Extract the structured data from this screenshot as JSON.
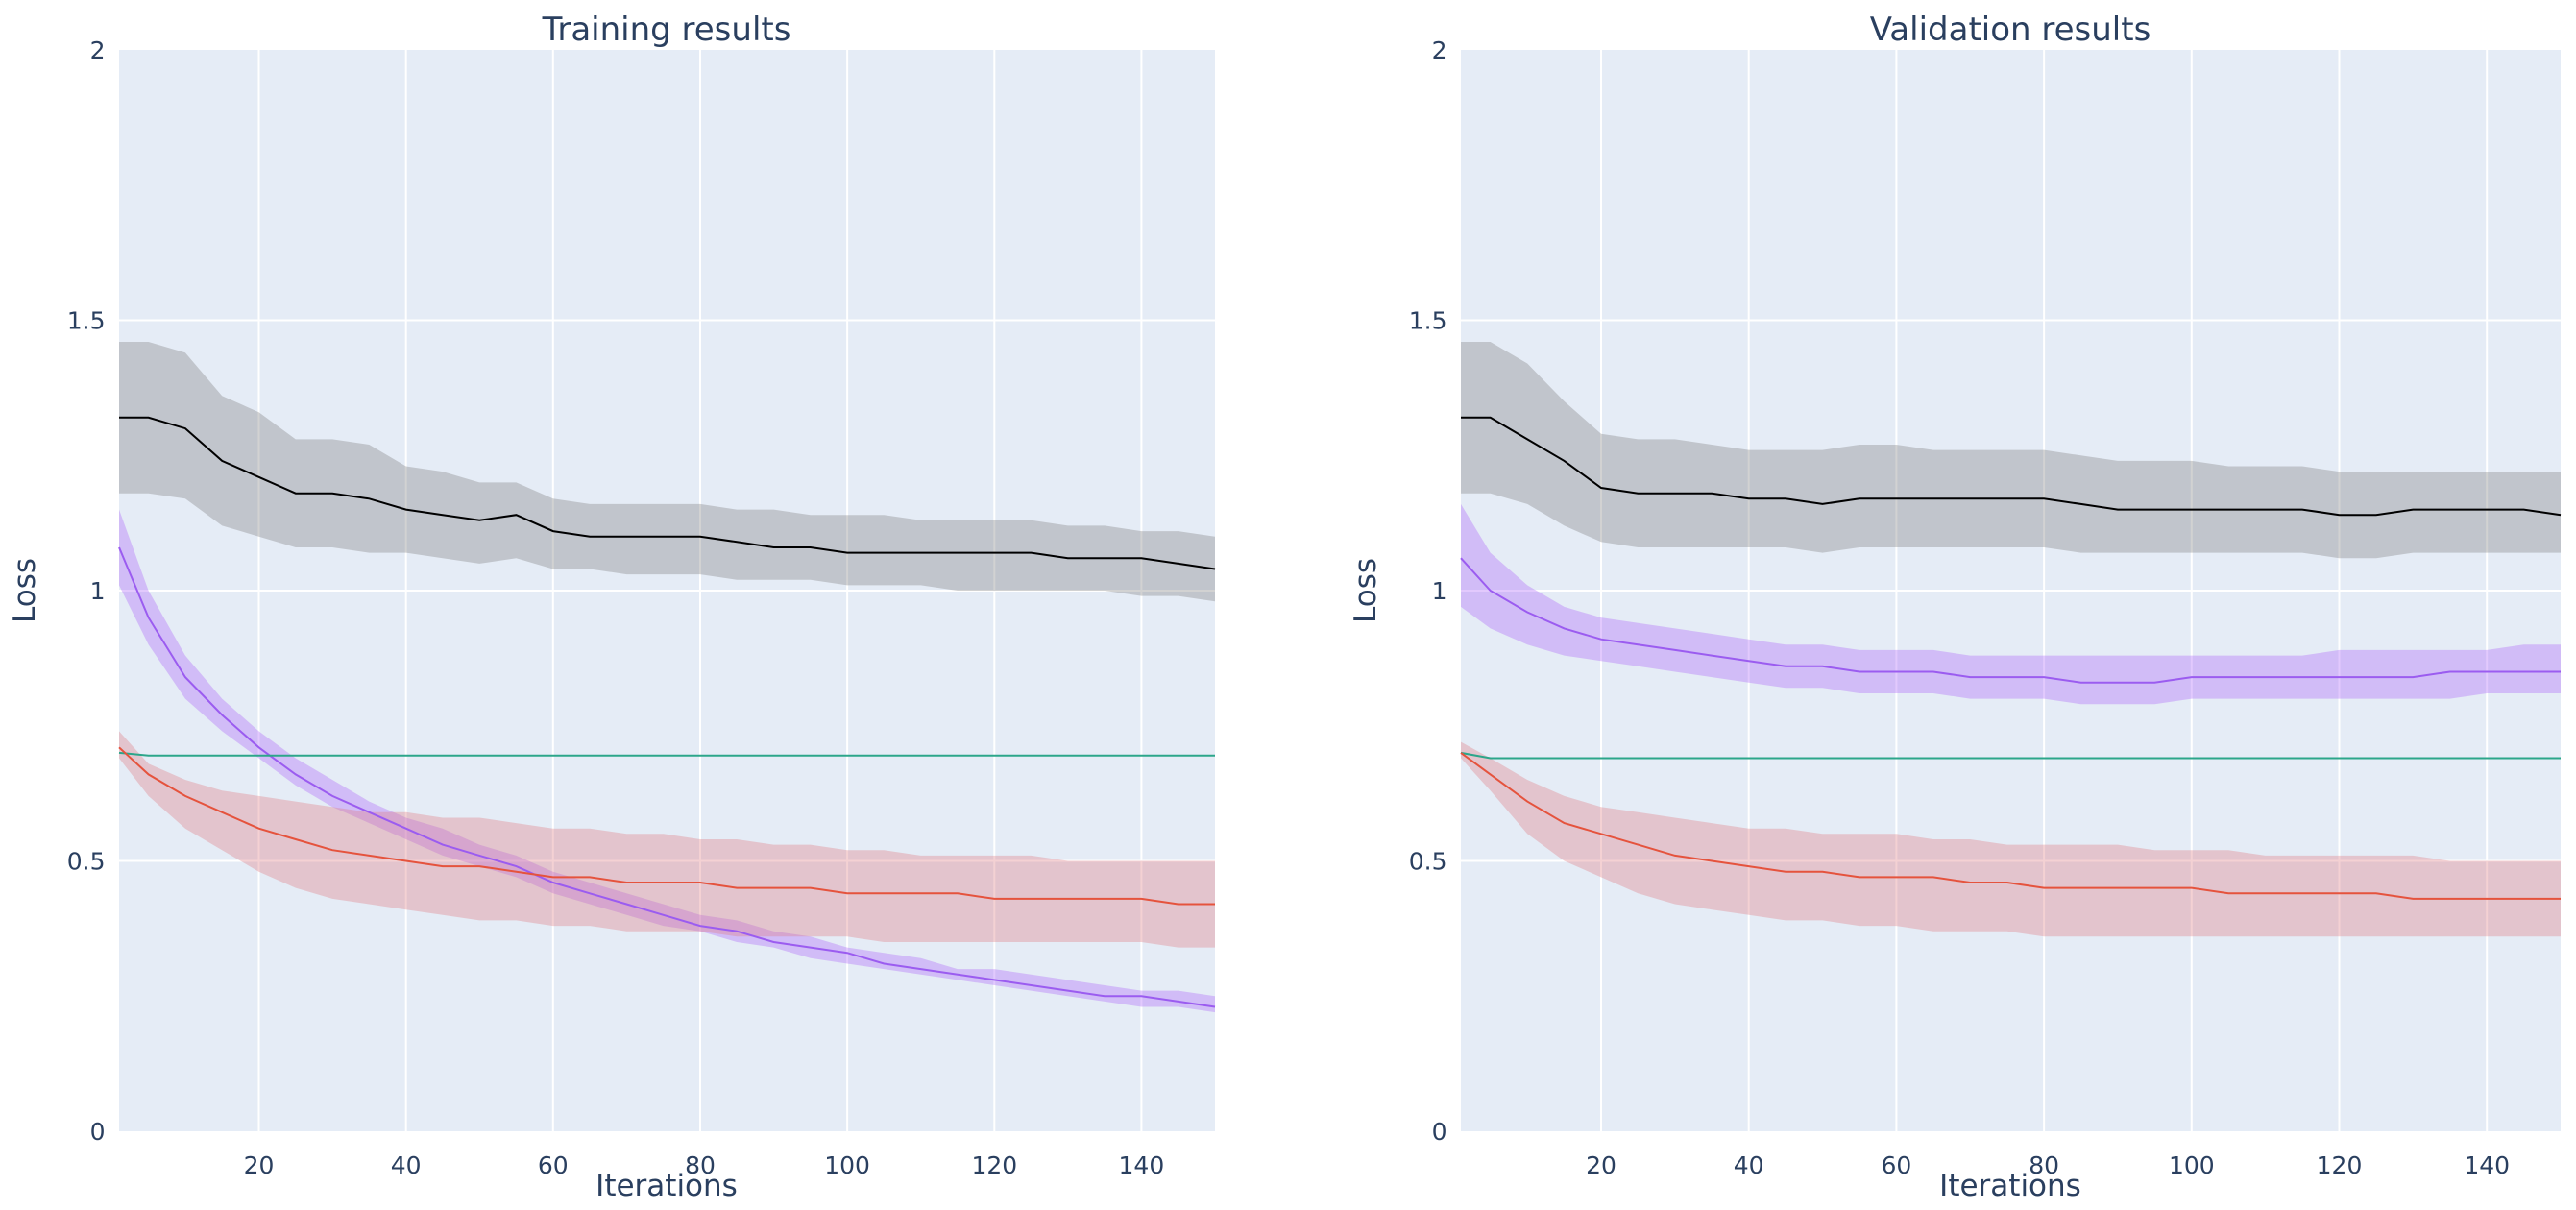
{
  "chart_data": [
    {
      "type": "line",
      "title": "Training results",
      "xlabel": "Iterations",
      "ylabel": "Loss",
      "xlim": [
        1,
        150
      ],
      "ylim": [
        0,
        2
      ],
      "x_ticks": [
        20,
        40,
        60,
        80,
        100,
        120,
        140
      ],
      "y_ticks": [
        0,
        0.5,
        1,
        1.5,
        2
      ],
      "y_tick_labels": [
        "0",
        "0.5",
        "1",
        "1.5",
        "2"
      ],
      "grid": true,
      "legend": "none",
      "x": [
        1,
        5,
        10,
        15,
        20,
        25,
        30,
        35,
        40,
        45,
        50,
        55,
        60,
        65,
        70,
        75,
        80,
        85,
        90,
        95,
        100,
        105,
        110,
        115,
        120,
        125,
        130,
        135,
        140,
        145,
        150
      ],
      "series": [
        {
          "color": "#000000",
          "band_color": "#7f7f7f",
          "values": [
            1.32,
            1.32,
            1.3,
            1.24,
            1.21,
            1.18,
            1.18,
            1.17,
            1.15,
            1.14,
            1.13,
            1.14,
            1.11,
            1.1,
            1.1,
            1.1,
            1.1,
            1.09,
            1.08,
            1.08,
            1.07,
            1.07,
            1.07,
            1.07,
            1.07,
            1.07,
            1.06,
            1.06,
            1.06,
            1.05,
            1.04
          ],
          "upper": [
            1.46,
            1.46,
            1.44,
            1.36,
            1.33,
            1.28,
            1.28,
            1.27,
            1.23,
            1.22,
            1.2,
            1.2,
            1.17,
            1.16,
            1.16,
            1.16,
            1.16,
            1.15,
            1.15,
            1.14,
            1.14,
            1.14,
            1.13,
            1.13,
            1.13,
            1.13,
            1.12,
            1.12,
            1.11,
            1.11,
            1.1
          ],
          "lower": [
            1.18,
            1.18,
            1.17,
            1.12,
            1.1,
            1.08,
            1.08,
            1.07,
            1.07,
            1.06,
            1.05,
            1.06,
            1.04,
            1.04,
            1.03,
            1.03,
            1.03,
            1.02,
            1.02,
            1.02,
            1.01,
            1.01,
            1.01,
            1.0,
            1.0,
            1.0,
            1.0,
            1.0,
            0.99,
            0.99,
            0.98
          ]
        },
        {
          "color": "#9b5cf0",
          "band_color": "#ab63fa",
          "values": [
            1.08,
            0.95,
            0.84,
            0.77,
            0.71,
            0.66,
            0.62,
            0.59,
            0.56,
            0.53,
            0.51,
            0.49,
            0.46,
            0.44,
            0.42,
            0.4,
            0.38,
            0.37,
            0.35,
            0.34,
            0.33,
            0.31,
            0.3,
            0.29,
            0.28,
            0.27,
            0.26,
            0.25,
            0.25,
            0.24,
            0.23
          ],
          "upper": [
            1.15,
            1.0,
            0.88,
            0.8,
            0.74,
            0.69,
            0.65,
            0.61,
            0.58,
            0.56,
            0.53,
            0.51,
            0.48,
            0.46,
            0.44,
            0.42,
            0.4,
            0.39,
            0.37,
            0.36,
            0.34,
            0.33,
            0.32,
            0.3,
            0.3,
            0.29,
            0.28,
            0.27,
            0.26,
            0.26,
            0.25
          ],
          "lower": [
            1.01,
            0.9,
            0.8,
            0.74,
            0.69,
            0.64,
            0.6,
            0.57,
            0.54,
            0.51,
            0.49,
            0.47,
            0.44,
            0.42,
            0.4,
            0.38,
            0.37,
            0.35,
            0.34,
            0.32,
            0.31,
            0.3,
            0.29,
            0.28,
            0.27,
            0.26,
            0.25,
            0.24,
            0.23,
            0.23,
            0.22
          ]
        },
        {
          "color": "#2ca68a",
          "values": [
            0.7,
            0.695,
            0.695,
            0.695,
            0.695,
            0.695,
            0.695,
            0.695,
            0.695,
            0.695,
            0.695,
            0.695,
            0.695,
            0.695,
            0.695,
            0.695,
            0.695,
            0.695,
            0.695,
            0.695,
            0.695,
            0.695,
            0.695,
            0.695,
            0.695,
            0.695,
            0.695,
            0.695,
            0.695,
            0.695,
            0.695
          ]
        },
        {
          "color": "#e5533d",
          "band_color": "#e07b80",
          "values": [
            0.71,
            0.66,
            0.62,
            0.59,
            0.56,
            0.54,
            0.52,
            0.51,
            0.5,
            0.49,
            0.49,
            0.48,
            0.47,
            0.47,
            0.46,
            0.46,
            0.46,
            0.45,
            0.45,
            0.45,
            0.44,
            0.44,
            0.44,
            0.44,
            0.43,
            0.43,
            0.43,
            0.43,
            0.43,
            0.42,
            0.42
          ],
          "upper": [
            0.74,
            0.68,
            0.65,
            0.63,
            0.62,
            0.61,
            0.6,
            0.59,
            0.59,
            0.58,
            0.58,
            0.57,
            0.56,
            0.56,
            0.55,
            0.55,
            0.54,
            0.54,
            0.53,
            0.53,
            0.52,
            0.52,
            0.51,
            0.51,
            0.51,
            0.51,
            0.5,
            0.5,
            0.5,
            0.5,
            0.5
          ],
          "lower": [
            0.69,
            0.62,
            0.56,
            0.52,
            0.48,
            0.45,
            0.43,
            0.42,
            0.41,
            0.4,
            0.39,
            0.39,
            0.38,
            0.38,
            0.37,
            0.37,
            0.37,
            0.36,
            0.36,
            0.36,
            0.36,
            0.35,
            0.35,
            0.35,
            0.35,
            0.35,
            0.35,
            0.35,
            0.35,
            0.34,
            0.34
          ]
        }
      ]
    },
    {
      "type": "line",
      "title": "Validation results",
      "xlabel": "Iterations",
      "ylabel": "Loss",
      "xlim": [
        1,
        150
      ],
      "ylim": [
        0,
        2
      ],
      "x_ticks": [
        20,
        40,
        60,
        80,
        100,
        120,
        140
      ],
      "y_ticks": [
        0,
        0.5,
        1,
        1.5,
        2
      ],
      "y_tick_labels": [
        "0",
        "0.5",
        "1",
        "1.5",
        "2"
      ],
      "grid": true,
      "legend": "none",
      "x": [
        1,
        5,
        10,
        15,
        20,
        25,
        30,
        35,
        40,
        45,
        50,
        55,
        60,
        65,
        70,
        75,
        80,
        85,
        90,
        95,
        100,
        105,
        110,
        115,
        120,
        125,
        130,
        135,
        140,
        145,
        150
      ],
      "series": [
        {
          "color": "#000000",
          "band_color": "#7f7f7f",
          "values": [
            1.32,
            1.32,
            1.28,
            1.24,
            1.19,
            1.18,
            1.18,
            1.18,
            1.17,
            1.17,
            1.16,
            1.17,
            1.17,
            1.17,
            1.17,
            1.17,
            1.17,
            1.16,
            1.15,
            1.15,
            1.15,
            1.15,
            1.15,
            1.15,
            1.14,
            1.14,
            1.15,
            1.15,
            1.15,
            1.15,
            1.14
          ],
          "upper": [
            1.46,
            1.46,
            1.42,
            1.35,
            1.29,
            1.28,
            1.28,
            1.27,
            1.26,
            1.26,
            1.26,
            1.27,
            1.27,
            1.26,
            1.26,
            1.26,
            1.26,
            1.25,
            1.24,
            1.24,
            1.24,
            1.23,
            1.23,
            1.23,
            1.22,
            1.22,
            1.22,
            1.22,
            1.22,
            1.22,
            1.22
          ],
          "lower": [
            1.18,
            1.18,
            1.16,
            1.12,
            1.09,
            1.08,
            1.08,
            1.08,
            1.08,
            1.08,
            1.07,
            1.08,
            1.08,
            1.08,
            1.08,
            1.08,
            1.08,
            1.07,
            1.07,
            1.07,
            1.07,
            1.07,
            1.07,
            1.07,
            1.06,
            1.06,
            1.07,
            1.07,
            1.07,
            1.07,
            1.07
          ]
        },
        {
          "color": "#9b5cf0",
          "band_color": "#ab63fa",
          "values": [
            1.06,
            1.0,
            0.96,
            0.93,
            0.91,
            0.9,
            0.89,
            0.88,
            0.87,
            0.86,
            0.86,
            0.85,
            0.85,
            0.85,
            0.84,
            0.84,
            0.84,
            0.83,
            0.83,
            0.83,
            0.84,
            0.84,
            0.84,
            0.84,
            0.84,
            0.84,
            0.84,
            0.85,
            0.85,
            0.85,
            0.85
          ],
          "upper": [
            1.16,
            1.07,
            1.01,
            0.97,
            0.95,
            0.94,
            0.93,
            0.92,
            0.91,
            0.9,
            0.9,
            0.89,
            0.89,
            0.89,
            0.88,
            0.88,
            0.88,
            0.88,
            0.88,
            0.88,
            0.88,
            0.88,
            0.88,
            0.88,
            0.89,
            0.89,
            0.89,
            0.89,
            0.89,
            0.9,
            0.9
          ],
          "lower": [
            0.97,
            0.93,
            0.9,
            0.88,
            0.87,
            0.86,
            0.85,
            0.84,
            0.83,
            0.82,
            0.82,
            0.81,
            0.81,
            0.81,
            0.8,
            0.8,
            0.8,
            0.79,
            0.79,
            0.79,
            0.8,
            0.8,
            0.8,
            0.8,
            0.8,
            0.8,
            0.8,
            0.8,
            0.81,
            0.81,
            0.81
          ]
        },
        {
          "color": "#2ca68a",
          "values": [
            0.7,
            0.69,
            0.69,
            0.69,
            0.69,
            0.69,
            0.69,
            0.69,
            0.69,
            0.69,
            0.69,
            0.69,
            0.69,
            0.69,
            0.69,
            0.69,
            0.69,
            0.69,
            0.69,
            0.69,
            0.69,
            0.69,
            0.69,
            0.69,
            0.69,
            0.69,
            0.69,
            0.69,
            0.69,
            0.69,
            0.69
          ]
        },
        {
          "color": "#e5533d",
          "band_color": "#e07b80",
          "values": [
            0.7,
            0.66,
            0.61,
            0.57,
            0.55,
            0.53,
            0.51,
            0.5,
            0.49,
            0.48,
            0.48,
            0.47,
            0.47,
            0.47,
            0.46,
            0.46,
            0.45,
            0.45,
            0.45,
            0.45,
            0.45,
            0.44,
            0.44,
            0.44,
            0.44,
            0.44,
            0.43,
            0.43,
            0.43,
            0.43,
            0.43
          ],
          "upper": [
            0.72,
            0.69,
            0.65,
            0.62,
            0.6,
            0.59,
            0.58,
            0.57,
            0.56,
            0.56,
            0.55,
            0.55,
            0.55,
            0.54,
            0.54,
            0.53,
            0.53,
            0.53,
            0.53,
            0.52,
            0.52,
            0.52,
            0.51,
            0.51,
            0.51,
            0.51,
            0.51,
            0.5,
            0.5,
            0.5,
            0.5
          ],
          "lower": [
            0.69,
            0.63,
            0.55,
            0.5,
            0.47,
            0.44,
            0.42,
            0.41,
            0.4,
            0.39,
            0.39,
            0.38,
            0.38,
            0.37,
            0.37,
            0.37,
            0.36,
            0.36,
            0.36,
            0.36,
            0.36,
            0.36,
            0.36,
            0.36,
            0.36,
            0.36,
            0.36,
            0.36,
            0.36,
            0.36,
            0.36
          ]
        }
      ]
    }
  ]
}
